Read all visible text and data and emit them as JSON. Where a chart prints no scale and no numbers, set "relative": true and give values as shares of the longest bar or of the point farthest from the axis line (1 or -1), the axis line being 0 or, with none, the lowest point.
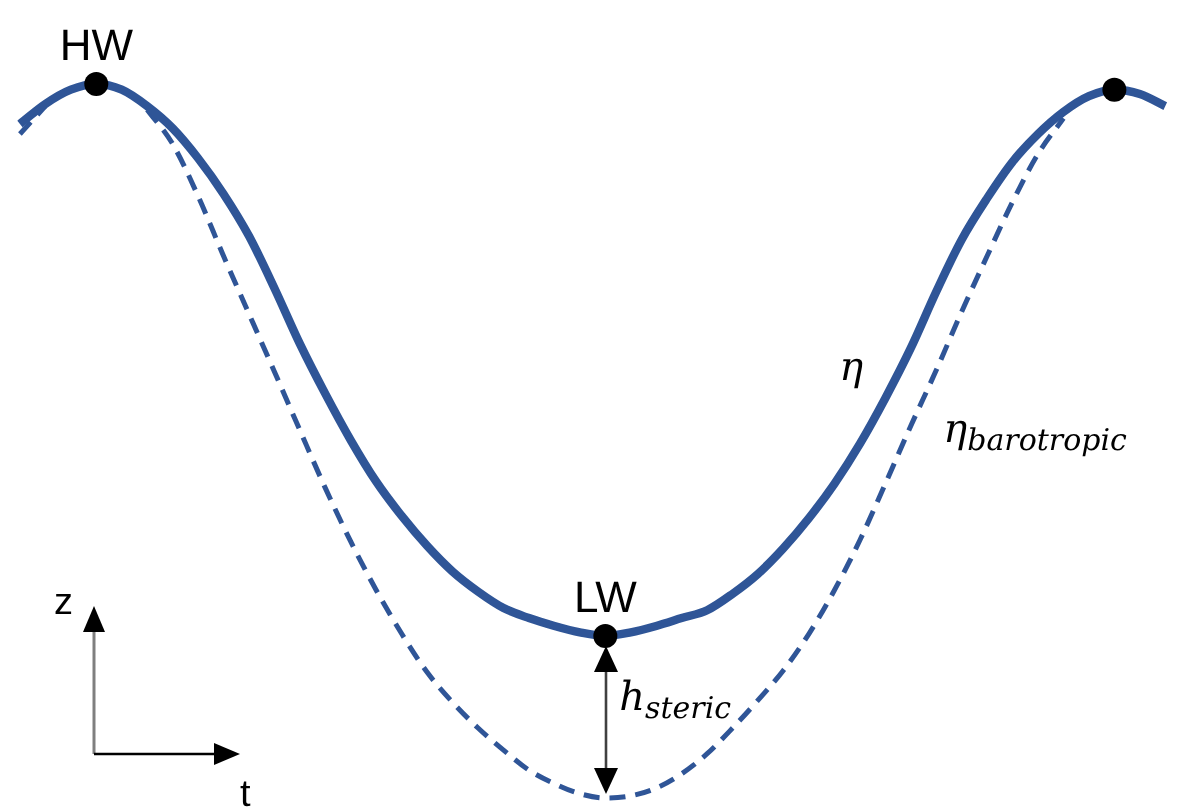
{
  "chart_data": {
    "type": "line",
    "relative": true,
    "xlabel": "t",
    "ylabel": "z",
    "categories": [
      null,
      null,
      null,
      null,
      null,
      null,
      null,
      null,
      null,
      null,
      null,
      null,
      null,
      null,
      null,
      null,
      null,
      null,
      null,
      null,
      null,
      null,
      null,
      null,
      null,
      null,
      null,
      null,
      null,
      null,
      null,
      null,
      null,
      null,
      null,
      null,
      null,
      null,
      null,
      null,
      null,
      null,
      null,
      null,
      null,
      null
    ],
    "series": [
      {
        "name": "η",
        "color": "#2f5597",
        "line_style": "solid",
        "values": [
          0.944,
          0.972,
          0.992,
          1,
          0.992,
          0.969,
          0.938,
          0.896,
          0.846,
          0.787,
          0.714,
          0.636,
          0.566,
          0.501,
          0.443,
          0.395,
          0.353,
          0.317,
          0.289,
          0.266,
          0.252,
          0.241,
          0.232,
          0.227,
          0.232,
          0.241,
          0.252,
          0.263,
          0.286,
          0.314,
          0.35,
          0.392,
          0.44,
          0.496,
          0.56,
          0.63,
          0.709,
          0.782,
          0.84,
          0.891,
          0.93,
          0.961,
          0.983,
          0.992,
          0.986,
          0.969
        ]
      },
      {
        "name": "η$_{barotropic}$",
        "color": "#2f5597",
        "line_style": "dashed",
        "values": [
          0.93,
          0.969,
          null,
          null,
          null,
          0.964,
          0.916,
          0.843,
          0.759,
          0.678,
          0.597,
          0.515,
          0.434,
          0.359,
          0.291,
          0.23,
          0.176,
          0.134,
          0.098,
          0.067,
          0.039,
          0.02,
          0.006,
          0,
          0.003,
          0.014,
          0.034,
          0.062,
          0.098,
          0.137,
          0.179,
          0.23,
          0.291,
          0.361,
          0.44,
          0.521,
          0.599,
          0.681,
          0.759,
          0.835,
          0.902,
          0.952,
          null,
          null,
          null,
          null
        ]
      },
      {
        "name": "HW",
        "color": "#000000",
        "marker": "circle",
        "values": [
          null,
          null,
          null,
          1,
          null,
          null,
          null,
          null,
          null,
          null,
          null,
          null,
          null,
          null,
          null,
          null,
          null,
          null,
          null,
          null,
          null,
          null,
          null,
          null,
          null,
          null,
          null,
          null,
          null,
          null,
          null,
          null,
          null,
          null,
          null,
          null,
          null,
          null,
          null,
          null,
          null,
          null,
          null,
          null,
          null,
          null
        ]
      },
      {
        "name": "LW",
        "color": "#000000",
        "marker": "circle",
        "values": [
          null,
          null,
          null,
          null,
          null,
          null,
          null,
          null,
          null,
          null,
          null,
          null,
          null,
          null,
          null,
          null,
          null,
          null,
          null,
          null,
          null,
          null,
          null,
          0.227,
          null,
          null,
          null,
          null,
          null,
          null,
          null,
          null,
          null,
          null,
          null,
          null,
          null,
          null,
          null,
          null,
          null,
          null,
          null,
          null,
          null,
          null
        ]
      },
      {
        "color": "#000000",
        "marker": "circle",
        "values": [
          null,
          null,
          null,
          null,
          null,
          null,
          null,
          null,
          null,
          null,
          null,
          null,
          null,
          null,
          null,
          null,
          null,
          null,
          null,
          null,
          null,
          null,
          null,
          null,
          null,
          null,
          null,
          null,
          null,
          null,
          null,
          null,
          null,
          null,
          null,
          null,
          null,
          null,
          null,
          null,
          null,
          null,
          null,
          0.992,
          null,
          null
        ]
      }
    ],
    "annotations": [
      "h$_{steric}$"
    ]
  }
}
